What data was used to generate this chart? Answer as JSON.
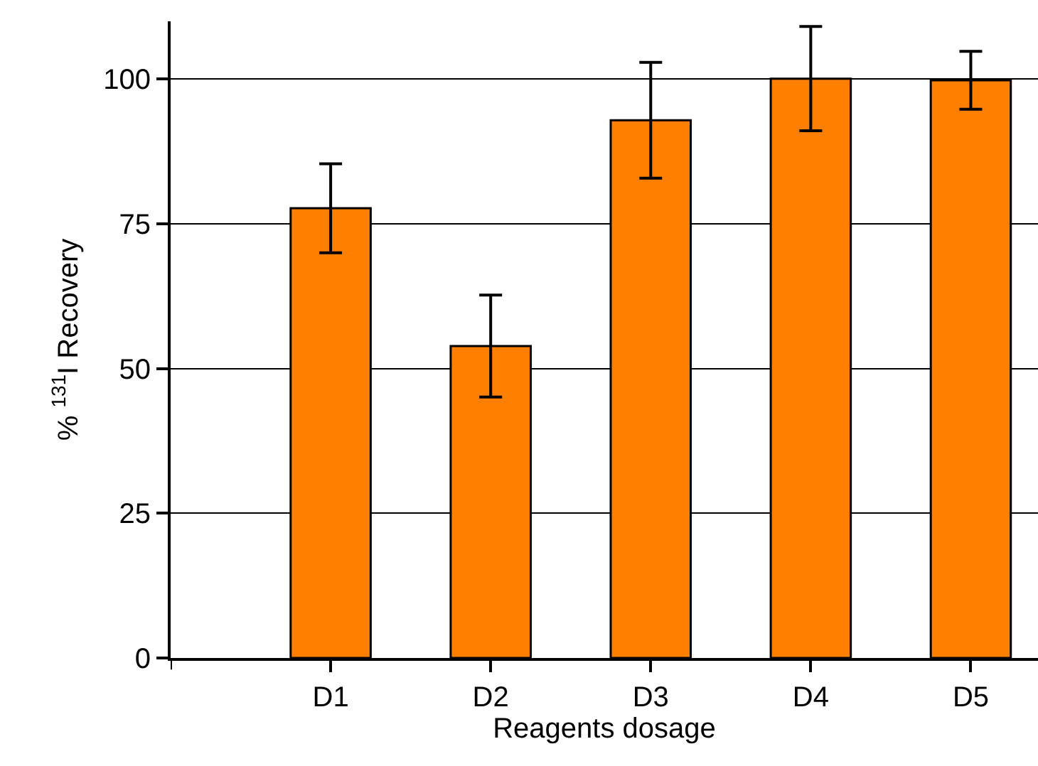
{
  "chart_data": {
    "type": "bar",
    "xlabel": "Reagents dosage",
    "ylabel": "% $^{131}$I Recovery",
    "categories": [
      null,
      "D1",
      "D2",
      "D3",
      "D4",
      "D5"
    ],
    "values": [
      null,
      77.7,
      53.9,
      92.9,
      100.1,
      99.8
    ],
    "errors": [
      null,
      7.7,
      8.8,
      10,
      9,
      5
    ],
    "color": "#ff8000",
    "ylim": [
      0,
      110
    ],
    "yticks": [
      0,
      25,
      50,
      75,
      100
    ],
    "grid": "y"
  }
}
